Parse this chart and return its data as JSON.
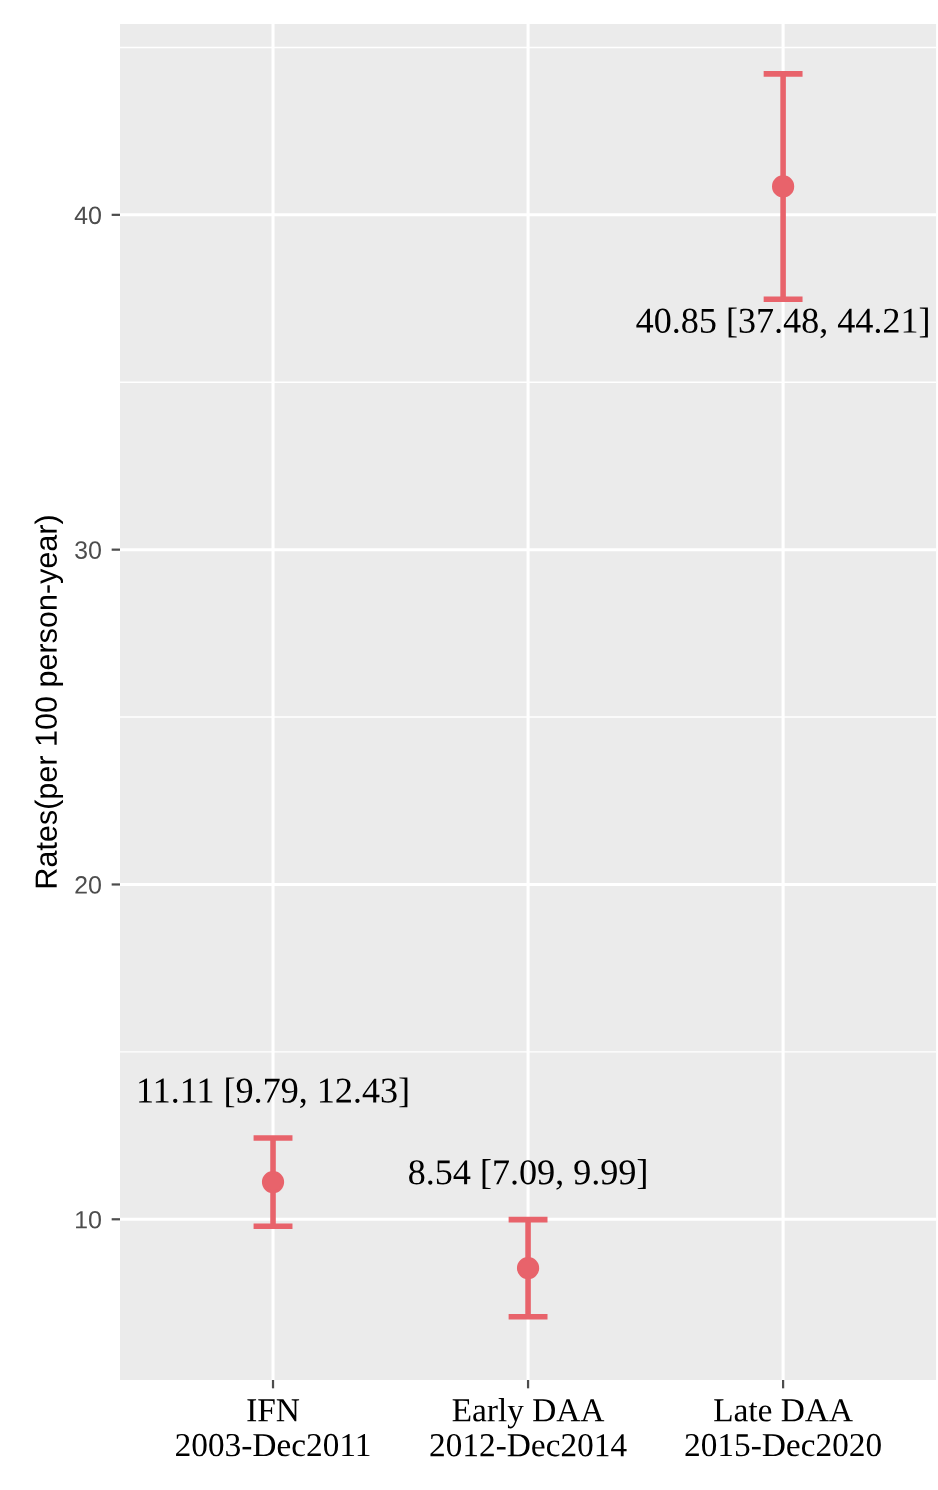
{
  "chart_data": {
    "type": "scatter",
    "ylabel": "Rates(per 100 person-year)",
    "categories": [
      "IFN\n2003-Dec2011",
      "Early DAA\n2012-Dec2014",
      "Late DAA\n2015-Dec2020"
    ],
    "values": [
      11.11,
      8.54,
      40.85
    ],
    "errors": [
      [
        9.79,
        12.43
      ],
      [
        7.09,
        9.99
      ],
      [
        37.48,
        44.21
      ]
    ],
    "value_labels": [
      "11.11 [9.79, 12.43]",
      "8.54 [7.09, 9.99]",
      "40.85 [37.48, 44.21]"
    ],
    "color": "#e8636b",
    "marker": "circle",
    "ylim": [
      5.2,
      45.7
    ],
    "yticks": [
      10,
      20,
      30,
      40
    ],
    "grid": true,
    "legend": false
  }
}
